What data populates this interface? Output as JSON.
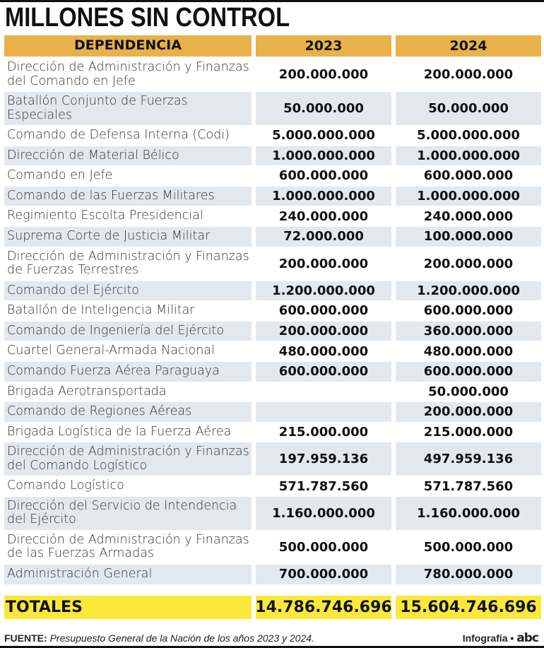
{
  "title": "MILLONES SIN CONTROL",
  "columns": [
    "DEPENDENCIA",
    "2023",
    "2024"
  ],
  "rows": [
    {
      "dependencia": "Dirección de Administración y Finanzas del Comando en Jefe",
      "y2023": "200.000.000",
      "y2024": "200.000.000",
      "lines": 2
    },
    {
      "dependencia": "Batallón Conjunto de Fuerzas Especiales",
      "y2023": "50.000.000",
      "y2024": "50.000.000",
      "lines": 2
    },
    {
      "dependencia": "Comando de Defensa Interna (Codi)",
      "y2023": "5.000.000.000",
      "y2024": "5.000.000.000",
      "lines": 1
    },
    {
      "dependencia": "Dirección de Material Bélico",
      "y2023": "1.000.000.000",
      "y2024": "1.000.000.000",
      "lines": 1
    },
    {
      "dependencia": "Comando en Jefe",
      "y2023": "600.000.000",
      "y2024": "600.000.000",
      "lines": 1
    },
    {
      "dependencia": "Comando de las Fuerzas Militares",
      "y2023": "1.000.000.000",
      "y2024": "1.000.000.000",
      "lines": 1
    },
    {
      "dependencia": "Regimiento Escolta Presidencial",
      "y2023": "240.000.000",
      "y2024": "240.000.000",
      "lines": 1
    },
    {
      "dependencia": "Suprema Corte de Justicia Militar",
      "y2023": "72.000.000",
      "y2024": "100.000.000",
      "lines": 1
    },
    {
      "dependencia": "Dirección de Administración y Finanzas de Fuerzas Terrestres",
      "y2023": "200.000.000",
      "y2024": "200.000.000",
      "lines": 2
    },
    {
      "dependencia": "Comando del Ejército",
      "y2023": "1.200.000.000",
      "y2024": "1.200.000.000",
      "lines": 1
    },
    {
      "dependencia": "Batallón de Inteligencia Militar",
      "y2023": "600.000.000",
      "y2024": "600.000.000",
      "lines": 1
    },
    {
      "dependencia": "Comando de Ingeniería del Ejército",
      "y2023": "200.000.000",
      "y2024": "360.000.000",
      "lines": 1
    },
    {
      "dependencia": "Cuartel General-Armada Nacional",
      "y2023": "480.000.000",
      "y2024": "480.000.000",
      "lines": 1
    },
    {
      "dependencia": "Comando Fuerza Aérea Paraguaya",
      "y2023": "600.000.000",
      "y2024": "600.000.000",
      "lines": 1
    },
    {
      "dependencia": "Brigada Aerotransportada",
      "y2023": "",
      "y2024": "50.000.000",
      "lines": 1
    },
    {
      "dependencia": "Comando de Regiones Aéreas",
      "y2023": "",
      "y2024": "200.000.000",
      "lines": 1
    },
    {
      "dependencia": "Brigada Logística de la Fuerza Aérea",
      "y2023": "215.000.000",
      "y2024": "215.000.000",
      "lines": 1
    },
    {
      "dependencia": "Dirección de Administración y Finanzas del Comando Logístico",
      "y2023": "197.959.136",
      "y2024": "497.959.136",
      "lines": 2
    },
    {
      "dependencia": "Comando Logístico",
      "y2023": "571.787.560",
      "y2024": "571.787.560",
      "lines": 1
    },
    {
      "dependencia": "Dirección del Servicio de Intendencia del Ejército",
      "y2023": "1.160.000.000",
      "y2024": "1.160.000.000",
      "lines": 2
    },
    {
      "dependencia": "Dirección de Administración y Finanzas de las Fuerzas Armadas",
      "y2023": "500.000.000",
      "y2024": "500.000.000",
      "lines": 2
    },
    {
      "dependencia": "Administración General",
      "y2023": "700.000.000",
      "y2024": "780.000.000",
      "lines": 1
    }
  ],
  "totals": {
    "label": "TOTALES",
    "y2023": "14.786.746.696",
    "y2024": "15.604.746.696"
  },
  "footer": {
    "source_label": "FUENTE:",
    "source_text": "Presupuesto General de la Nación de los años 2023 y 2024.",
    "credit": "Infografía •",
    "logo": "abc"
  },
  "colors": {
    "header": "#e8b24a",
    "totals": "#fbe93a",
    "alt_row": "#e3e8ef"
  }
}
